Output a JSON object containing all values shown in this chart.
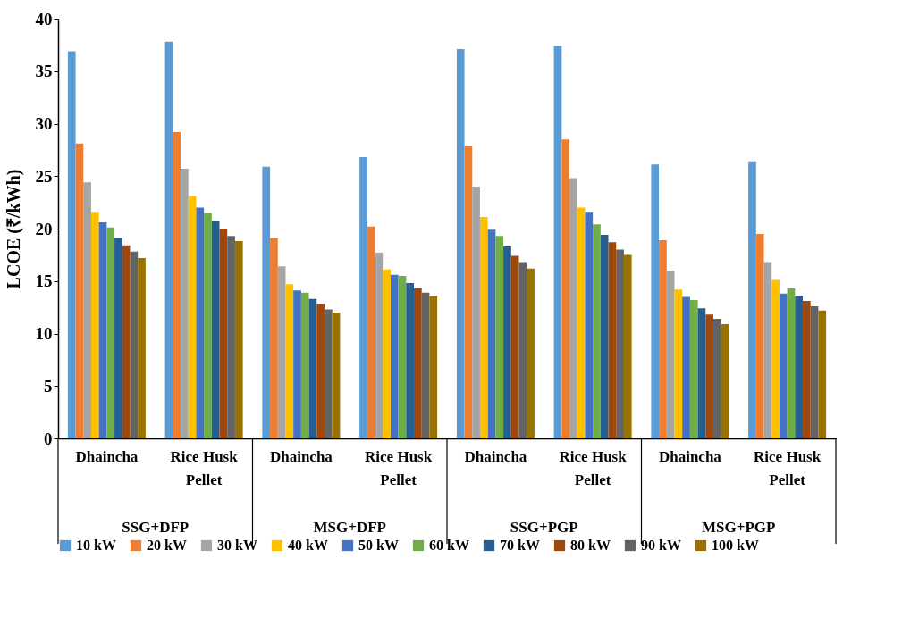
{
  "chart_data": {
    "type": "bar",
    "ylabel": "LCOE (₹/kWh)",
    "categories": [
      "Dhaincha",
      "Rice Husk Pellet",
      "Dhaincha",
      "Rice Husk Pellet",
      "Dhaincha",
      "Rice Husk Pellet",
      "Dhaincha",
      "Rice Husk Pellet"
    ],
    "annotations": [
      "SSG+DFP",
      "MSG+DFP",
      "SSG+PGP",
      "MSG+PGP"
    ],
    "series": [
      {
        "name": "10 kW",
        "color": "#5b9bd5",
        "values": [
          36.9,
          37.8,
          25.9,
          26.8,
          37.1,
          37.4,
          26.1,
          26.4
        ]
      },
      {
        "name": "20 kW",
        "color": "#ed7d31",
        "values": [
          28.1,
          29.2,
          19.1,
          20.2,
          27.9,
          28.5,
          18.9,
          19.5
        ]
      },
      {
        "name": "30 kW",
        "color": "#a5a5a5",
        "values": [
          24.4,
          25.7,
          16.4,
          17.7,
          24.0,
          24.8,
          16.0,
          16.8
        ]
      },
      {
        "name": "40 kW",
        "color": "#ffc000",
        "values": [
          21.6,
          23.1,
          14.7,
          16.1,
          21.1,
          22.0,
          14.2,
          15.1
        ]
      },
      {
        "name": "50 kW",
        "color": "#4472c4",
        "values": [
          20.6,
          22.0,
          14.1,
          15.6,
          19.9,
          21.6,
          13.5,
          13.8
        ]
      },
      {
        "name": "60 kW",
        "color": "#70ad47",
        "values": [
          20.1,
          21.5,
          13.9,
          15.5,
          19.3,
          20.4,
          13.2,
          14.3
        ]
      },
      {
        "name": "70 kW",
        "color": "#255e91",
        "values": [
          19.1,
          20.7,
          13.3,
          14.8,
          18.3,
          19.4,
          12.4,
          13.6
        ]
      },
      {
        "name": "80 kW",
        "color": "#9e480e",
        "values": [
          18.4,
          20.0,
          12.8,
          14.3,
          17.4,
          18.7,
          11.8,
          13.1
        ]
      },
      {
        "name": "90 kW",
        "color": "#636363",
        "values": [
          17.8,
          19.3,
          12.3,
          13.9,
          16.8,
          18.0,
          11.4,
          12.6
        ]
      },
      {
        "name": "100 kW",
        "color": "#997300",
        "values": [
          17.2,
          18.8,
          12.0,
          13.6,
          16.2,
          17.5,
          10.9,
          12.2
        ]
      }
    ],
    "ylim": [
      0,
      40
    ],
    "yticks": [
      0,
      5,
      10,
      15,
      20,
      25,
      30,
      35,
      40
    ],
    "grid": false,
    "legend": "bottom"
  }
}
